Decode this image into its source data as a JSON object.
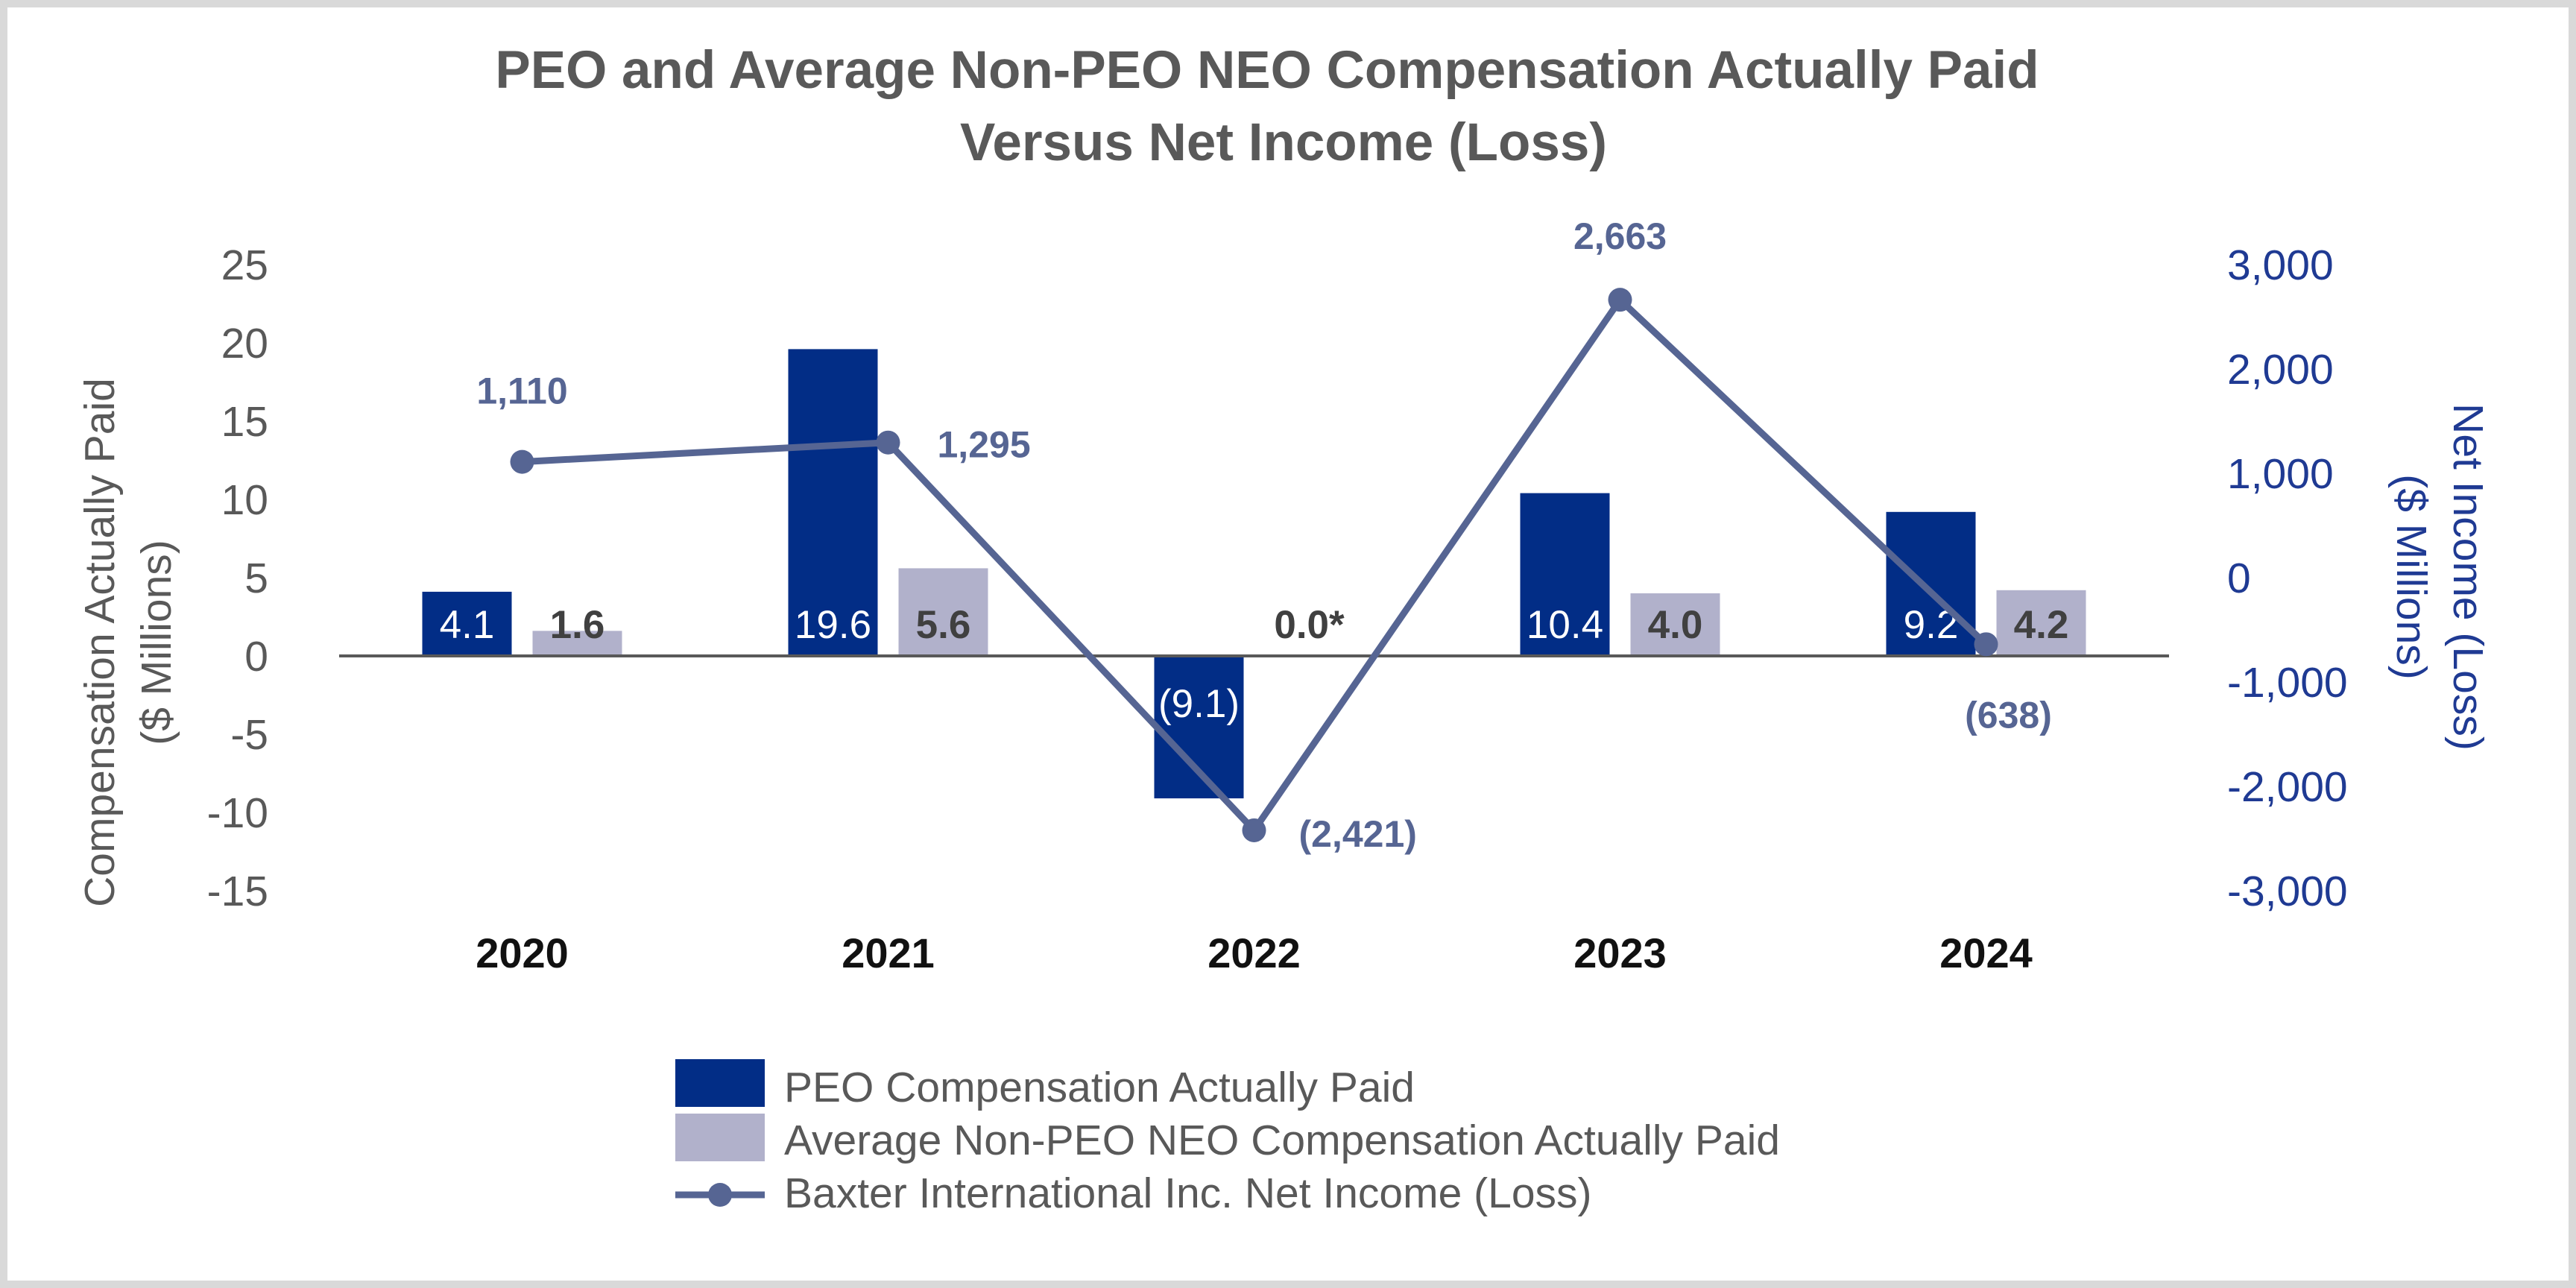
{
  "chart_data": {
    "type": "bar",
    "title_lines": [
      "PEO and Average Non-PEO NEO Compensation Actually Paid",
      "Versus Net Income (Loss)"
    ],
    "categories": [
      "2020",
      "2021",
      "2022",
      "2023",
      "2024"
    ],
    "series": [
      {
        "name": "PEO Compensation Actually Paid",
        "kind": "bar",
        "axis": "left",
        "values": [
          4.1,
          19.6,
          -9.1,
          10.4,
          9.2
        ],
        "labels": [
          "4.1",
          "19.6",
          "(9.1)",
          "10.4",
          "9.2"
        ]
      },
      {
        "name": "Average Non-PEO NEO Compensation Actually Paid",
        "kind": "bar",
        "axis": "left",
        "values": [
          1.6,
          5.6,
          0.0,
          4.0,
          4.2
        ],
        "labels": [
          "1.6",
          "5.6",
          "0.0*",
          "4.0",
          "4.2"
        ]
      },
      {
        "name": "Baxter International Inc. Net Income (Loss)",
        "kind": "line",
        "axis": "right",
        "values": [
          1110,
          1295,
          -2421,
          2663,
          -638
        ],
        "labels": [
          "1,110",
          "1,295",
          "(2,421)",
          "2,663",
          "(638)"
        ]
      }
    ],
    "left_axis": {
      "title_lines": [
        "Compensation Actually Paid",
        "($ Millions)"
      ],
      "range": [
        -15,
        25
      ],
      "ticks": [
        25,
        20,
        15,
        10,
        5,
        0,
        -5,
        -10,
        -15
      ],
      "tick_labels": [
        "25",
        "20",
        "15",
        "10",
        "5",
        "0",
        "-5",
        "-10",
        "-15"
      ]
    },
    "right_axis": {
      "title_lines": [
        "Net Income (Loss)",
        "($ Millions)"
      ],
      "range": [
        -3000,
        3000
      ],
      "ticks": [
        3000,
        2000,
        1000,
        0,
        -1000,
        -2000,
        -3000
      ],
      "tick_labels": [
        "3,000",
        "2,000",
        "1,000",
        "0",
        "-1,000",
        "-2,000",
        "-3,000"
      ]
    },
    "colors": {
      "peo": "#022d86",
      "neo": "#b1b1cb",
      "net": "#566593",
      "zero_line": "#595959"
    },
    "legend_position": "bottom"
  }
}
